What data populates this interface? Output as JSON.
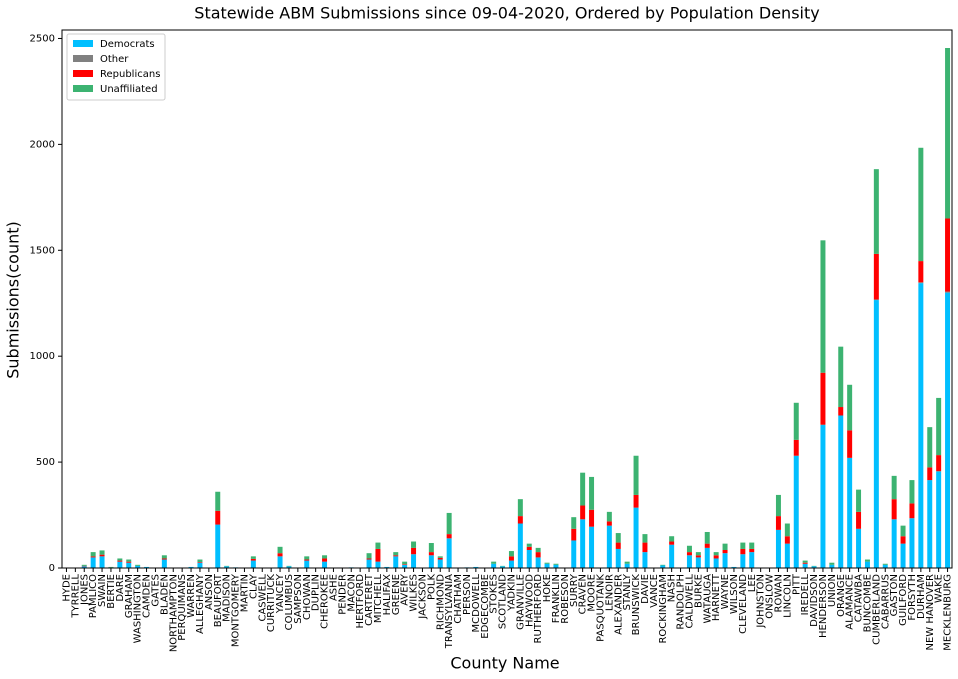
{
  "chart_data": {
    "type": "bar",
    "stacked": true,
    "title": "Statewide ABM Submissions since 09-04-2020, Ordered by Population Density",
    "xlabel": "County Name",
    "ylabel": "Submissions(count)",
    "categories": [
      "HYDE",
      "TYRRELL",
      "JONES",
      "PAMLICO",
      "SWAIN",
      "BERTIE",
      "DARE",
      "GRAHAM",
      "WASHINGTON",
      "CAMDEN",
      "GATES",
      "BLADEN",
      "NORTHAMPTON",
      "PERQUIMANS",
      "WARREN",
      "ALLEGHANY",
      "ANSON",
      "BEAUFORT",
      "MADISON",
      "MONTGOMERY",
      "MARTIN",
      "CLAY",
      "CASWELL",
      "CURRITUCK",
      "YANCEY",
      "COLUMBUS",
      "SAMPSON",
      "CHOWAN",
      "DUPLIN",
      "CHEROKEE",
      "ASHE",
      "PENDER",
      "MACON",
      "HERTFORD",
      "CARTERET",
      "MITCHELL",
      "HALIFAX",
      "GREENE",
      "AVERY",
      "WILKES",
      "JACKSON",
      "POLK",
      "RICHMOND",
      "TRANSYLVANIA",
      "CHATHAM",
      "PERSON",
      "MCDOWELL",
      "EDGECOMBE",
      "STOKES",
      "SCOTLAND",
      "YADKIN",
      "GRANVILLE",
      "HAYWOOD",
      "RUTHERFORD",
      "HOKE",
      "FRANKLIN",
      "ROBESON",
      "SURRY",
      "CRAVEN",
      "MOORE",
      "PASQUOTANK",
      "LENOIR",
      "ALEXANDER",
      "STANLY",
      "BRUNSWICK",
      "DAVIE",
      "VANCE",
      "ROCKINGHAM",
      "NASH",
      "RANDOLPH",
      "CALDWELL",
      "BURKE",
      "WATAUGA",
      "HARNETT",
      "WAYNE",
      "WILSON",
      "CLEVELAND",
      "LEE",
      "JOHNSTON",
      "ONSLOW",
      "ROWAN",
      "LINCOLN",
      "PITT",
      "IREDELL",
      "DAVIDSON",
      "HENDERSON",
      "UNION",
      "ORANGE",
      "ALAMANCE",
      "CATAWBA",
      "BUNCOMBE",
      "CUMBERLAND",
      "CABARRUS",
      "GASTON",
      "GUILFORD",
      "FORSYTH",
      "DURHAM",
      "NEW HANOVER",
      "WAKE",
      "MECKLENBURG"
    ],
    "series": [
      {
        "name": "Democrats",
        "color": "#00bfff",
        "values": [
          0,
          0,
          8,
          50,
          55,
          3,
          30,
          25,
          10,
          5,
          0,
          40,
          0,
          2,
          5,
          25,
          0,
          205,
          8,
          3,
          0,
          35,
          2,
          0,
          55,
          8,
          0,
          35,
          2,
          30,
          2,
          0,
          3,
          2,
          40,
          30,
          5,
          55,
          15,
          65,
          0,
          60,
          40,
          140,
          0,
          3,
          5,
          0,
          20,
          8,
          35,
          210,
          85,
          50,
          20,
          15,
          0,
          130,
          230,
          195,
          0,
          200,
          90,
          20,
          285,
          75,
          0,
          12,
          110,
          0,
          60,
          50,
          95,
          45,
          70,
          5,
          65,
          75,
          0,
          0,
          180,
          115,
          530,
          20,
          8,
          675,
          15,
          720,
          520,
          185,
          30,
          1265,
          15,
          230,
          115,
          235,
          1345,
          415,
          455,
          1300
        ]
      },
      {
        "name": "Other",
        "color": "#808080",
        "values": [
          0,
          0,
          0,
          0,
          0,
          0,
          0,
          0,
          0,
          0,
          0,
          0,
          0,
          0,
          0,
          0,
          0,
          0,
          0,
          0,
          0,
          0,
          0,
          0,
          0,
          0,
          0,
          0,
          0,
          0,
          0,
          0,
          0,
          0,
          0,
          0,
          0,
          0,
          0,
          0,
          0,
          0,
          0,
          0,
          0,
          0,
          0,
          0,
          0,
          0,
          0,
          0,
          0,
          0,
          0,
          0,
          0,
          0,
          0,
          0,
          0,
          0,
          0,
          0,
          0,
          0,
          0,
          0,
          0,
          0,
          0,
          0,
          0,
          0,
          0,
          0,
          0,
          0,
          0,
          0,
          0,
          0,
          0,
          0,
          0,
          2,
          0,
          0,
          0,
          0,
          0,
          3,
          0,
          0,
          0,
          0,
          4,
          0,
          3,
          5
        ]
      },
      {
        "name": "Republicans",
        "color": "#ff0000",
        "values": [
          0,
          0,
          2,
          5,
          8,
          0,
          5,
          5,
          0,
          0,
          0,
          5,
          0,
          0,
          0,
          3,
          0,
          65,
          0,
          0,
          0,
          8,
          0,
          0,
          15,
          0,
          0,
          5,
          0,
          15,
          0,
          0,
          0,
          0,
          5,
          60,
          0,
          5,
          3,
          30,
          0,
          15,
          8,
          20,
          0,
          0,
          0,
          0,
          0,
          0,
          20,
          35,
          15,
          25,
          0,
          0,
          0,
          55,
          65,
          80,
          0,
          20,
          30,
          0,
          60,
          45,
          0,
          0,
          15,
          0,
          15,
          10,
          20,
          15,
          15,
          0,
          25,
          15,
          0,
          0,
          65,
          35,
          75,
          5,
          0,
          245,
          0,
          40,
          130,
          80,
          0,
          215,
          0,
          95,
          35,
          70,
          100,
          60,
          75,
          345
        ]
      },
      {
        "name": "Unaffiliated",
        "color": "#3cb371",
        "values": [
          0,
          0,
          5,
          20,
          20,
          2,
          10,
          10,
          5,
          0,
          0,
          15,
          0,
          0,
          0,
          12,
          0,
          90,
          2,
          0,
          0,
          12,
          0,
          0,
          30,
          2,
          0,
          15,
          0,
          15,
          0,
          0,
          0,
          0,
          25,
          30,
          0,
          15,
          12,
          30,
          0,
          43,
          7,
          100,
          0,
          0,
          0,
          0,
          10,
          2,
          25,
          80,
          15,
          20,
          5,
          5,
          0,
          55,
          155,
          155,
          0,
          45,
          45,
          10,
          185,
          40,
          0,
          3,
          25,
          0,
          30,
          15,
          55,
          15,
          30,
          0,
          30,
          30,
          0,
          0,
          100,
          60,
          175,
          10,
          2,
          625,
          10,
          285,
          215,
          105,
          10,
          400,
          5,
          110,
          50,
          110,
          535,
          190,
          270,
          805
        ]
      }
    ],
    "ylim": [
      0,
      2540
    ],
    "yticks": [
      0,
      500,
      1000,
      1500,
      2000,
      2500
    ],
    "grid": false,
    "legend": "upper left"
  }
}
